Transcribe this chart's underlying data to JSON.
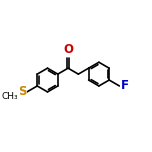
{
  "background_color": "#ffffff",
  "bond_color": "#000000",
  "bond_lw": 1.2,
  "font_size": 7.0,
  "O_color": "#cc0000",
  "S_color": "#cc8800",
  "F_color": "#0000cc",
  "C_color": "#000000",
  "figsize": [
    1.52,
    1.52
  ],
  "dpi": 100,
  "xlim": [
    -0.3,
    10.3
  ],
  "ylim": [
    2.0,
    8.2
  ],
  "ring_r": 0.88
}
